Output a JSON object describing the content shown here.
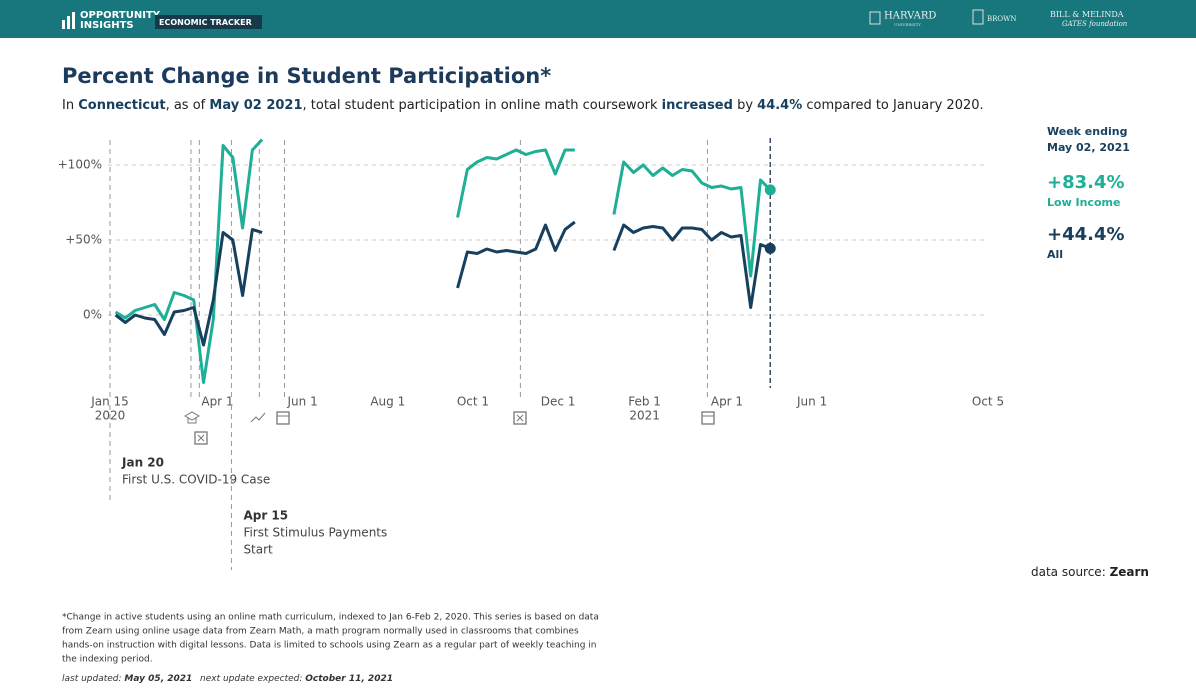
{
  "header": {
    "brand_top": "OPPORTUNITY",
    "brand_bottom": "INSIGHTS",
    "tracker": "ECONOMIC TRACKER",
    "partners": [
      "HARVARD",
      "UNIVERSITY",
      "BROWN",
      "BILL & MELINDA",
      "GATES foundation"
    ]
  },
  "subtitle_parts": [
    {
      "text": "In ",
      "bold": false
    },
    {
      "text": "Connecticut",
      "bold": true
    },
    {
      "text": ", as of ",
      "bold": false
    },
    {
      "text": "May 02 2021",
      "bold": true
    },
    {
      "text": ", total student participation in online math coursework ",
      "bold": false
    },
    {
      "text": "increased",
      "bold": true
    },
    {
      "text": " by ",
      "bold": false
    },
    {
      "text": "44.4%",
      "bold": true
    },
    {
      "text": " compared to January 2020.",
      "bold": false
    }
  ],
  "chart_data": {
    "type": "line",
    "title": "Percent Change in Student Participation*",
    "x": [
      "2020-01-19",
      "2020-01-26",
      "2020-02-02",
      "2020-02-09",
      "2020-02-16",
      "2020-02-23",
      "2020-03-01",
      "2020-03-08",
      "2020-03-15",
      "2020-03-22",
      "2020-03-29",
      "2020-04-05",
      "2020-04-12",
      "2020-04-19",
      "2020-04-26",
      "2020-05-03",
      "2020-05-10",
      "2020-09-20",
      "2020-09-27",
      "2020-10-04",
      "2020-10-11",
      "2020-10-18",
      "2020-10-25",
      "2020-11-01",
      "2020-11-08",
      "2020-11-15",
      "2020-11-22",
      "2020-11-29",
      "2020-12-06",
      "2020-12-13",
      "2020-12-20",
      "2021-01-10",
      "2021-01-17",
      "2021-01-24",
      "2021-01-31",
      "2021-02-07",
      "2021-02-14",
      "2021-02-21",
      "2021-02-28",
      "2021-03-07",
      "2021-03-14",
      "2021-03-21",
      "2021-03-28",
      "2021-04-04",
      "2021-04-11",
      "2021-04-18",
      "2021-04-25",
      "2021-05-02"
    ],
    "series": [
      {
        "name": "Low Income",
        "color": "#1fae96",
        "end_value_label": "+83.4%",
        "values": [
          2,
          -2,
          3,
          5,
          7,
          -3,
          15,
          13,
          10,
          -45,
          -3,
          113,
          105,
          58,
          110,
          117,
          null,
          65,
          97,
          102,
          105,
          104,
          107,
          110,
          107,
          109,
          110,
          94,
          110,
          110,
          null,
          67,
          102,
          95,
          100,
          93,
          98,
          93,
          97,
          96,
          88,
          85,
          86,
          84,
          85,
          26,
          90,
          83.4
        ]
      },
      {
        "name": "All",
        "color": "#17405f",
        "end_value_label": "+44.4%",
        "values": [
          0,
          -5,
          0,
          -2,
          -3,
          -13,
          2,
          3,
          5,
          -20,
          10,
          55,
          50,
          13,
          57,
          55,
          null,
          18,
          42,
          41,
          44,
          42,
          43,
          42,
          41,
          44,
          60,
          43,
          57,
          62,
          null,
          43,
          60,
          55,
          58,
          59,
          58,
          50,
          58,
          58,
          57,
          50,
          55,
          52,
          53,
          5,
          47,
          44.4
        ]
      }
    ],
    "xlim": [
      "2020-01-15",
      "2021-10-05"
    ],
    "xticks": [
      {
        "value": "2020-01-15",
        "label": "Jan 15",
        "year": "2020"
      },
      {
        "value": "2020-04-01",
        "label": "Apr 1"
      },
      {
        "value": "2020-06-01",
        "label": "Jun 1"
      },
      {
        "value": "2020-08-01",
        "label": "Aug 1"
      },
      {
        "value": "2020-10-01",
        "label": "Oct 1"
      },
      {
        "value": "2020-12-01",
        "label": "Dec 1"
      },
      {
        "value": "2021-02-01",
        "label": "Feb 1",
        "year": "2021"
      },
      {
        "value": "2021-04-01",
        "label": "Apr 1"
      },
      {
        "value": "2021-06-01",
        "label": "Jun 1"
      },
      {
        "value": "2021-10-05",
        "label": "Oct 5"
      }
    ],
    "ylim": [
      -50,
      125
    ],
    "yticks": [
      {
        "value": 0,
        "label": "0%"
      },
      {
        "value": 50,
        "label": "+50%"
      },
      {
        "value": 100,
        "label": "+100%"
      }
    ],
    "grid": true,
    "event_lines": [
      "2020-01-15",
      "2020-03-13",
      "2020-03-19",
      "2020-04-11",
      "2020-05-01",
      "2020-05-19",
      "2020-11-04",
      "2021-03-18"
    ],
    "current_week": {
      "date": "2021-05-02",
      "label_lines": [
        "Week ending",
        "May 02, 2021"
      ]
    },
    "annotations": [
      {
        "date": "2020-01-15",
        "title": "Jan 20",
        "text_lines": [
          "First U.S. COVID-19 Case"
        ]
      },
      {
        "date": "2020-04-11",
        "title": "Apr 15",
        "text_lines": [
          "First Stimulus Payments",
          "Start"
        ]
      }
    ]
  },
  "source": {
    "prefix": "data source: ",
    "name": "Zearn"
  },
  "footnote_lines": [
    "*Change in active students using an online math curriculum, indexed to Jan 6-Feb 2, 2020. This series is based on data",
    "from Zearn using online usage data from Zearn Math, a math program normally used in classrooms that combines",
    "hands-on instruction with digital lessons. Data is limited to schools using Zearn as a regular part of weekly teaching in",
    "the indexing period."
  ],
  "updates": [
    {
      "label": "last updated: ",
      "date": "May 05, 2021"
    },
    {
      "label": "next update expected: ",
      "date": "October 11, 2021"
    }
  ]
}
